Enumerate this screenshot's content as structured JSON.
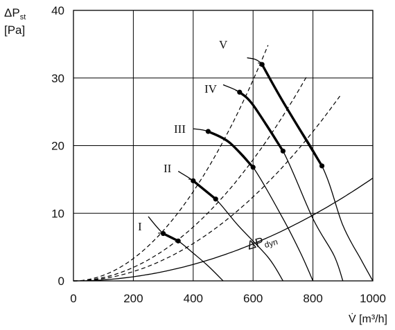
{
  "chart_data": {
    "type": "line",
    "title": "",
    "ylabel_main": "ΔP",
    "ylabel_sub": "st",
    "yunit": "[Pa]",
    "xlabel": "V̇ [m³/h]",
    "xlim": [
      0,
      1000
    ],
    "ylim": [
      0,
      40
    ],
    "xticks": [
      0,
      200,
      400,
      600,
      800,
      1000
    ],
    "yticks": [
      0,
      10,
      20,
      30,
      40
    ],
    "grid": true,
    "fan_curves": [
      {
        "name": "I",
        "points": [
          [
            250,
            9.5
          ],
          [
            300,
            7.0
          ],
          [
            350,
            5.9
          ],
          [
            400,
            4.1
          ],
          [
            450,
            2.2
          ],
          [
            500,
            0
          ]
        ],
        "bold_range": [
          300,
          350
        ]
      },
      {
        "name": "II",
        "points": [
          [
            350,
            16.2
          ],
          [
            400,
            14.8
          ],
          [
            475,
            12.1
          ],
          [
            550,
            8.2
          ],
          [
            650,
            3.5
          ],
          [
            700,
            0
          ]
        ],
        "bold_range": [
          400,
          475
        ]
      },
      {
        "name": "III",
        "points": [
          [
            400,
            22.5
          ],
          [
            450,
            22.1
          ],
          [
            520,
            20.5
          ],
          [
            600,
            16.8
          ],
          [
            700,
            9.2
          ],
          [
            760,
            4.0
          ],
          [
            800,
            0
          ]
        ],
        "bold_range": [
          450,
          600
        ]
      },
      {
        "name": "IV",
        "points": [
          [
            500,
            29.0
          ],
          [
            555,
            27.9
          ],
          [
            600,
            26.0
          ],
          [
            700,
            19.2
          ],
          [
            800,
            9.2
          ],
          [
            870,
            3.8
          ],
          [
            900,
            0
          ]
        ],
        "bold_range": [
          555,
          700
        ]
      },
      {
        "name": "V",
        "points": [
          [
            580,
            33.0
          ],
          [
            630,
            32.0
          ],
          [
            700,
            26.5
          ],
          [
            830,
            17.0
          ],
          [
            900,
            8.2
          ],
          [
            960,
            3.2
          ],
          [
            1000,
            0
          ]
        ],
        "bold_range": [
          630,
          830
        ]
      }
    ],
    "system_curves_dashed": [
      {
        "k": 8.25e-05,
        "x_end": 655
      },
      {
        "k": 4.98e-05,
        "x_end": 780
      },
      {
        "k": 3.45e-05,
        "x_end": 895
      }
    ],
    "dynamic_pressure_curve": {
      "k": 1.52e-05,
      "x_end": 1000,
      "label_main": "ΔP",
      "label_sub": "dyn"
    }
  }
}
